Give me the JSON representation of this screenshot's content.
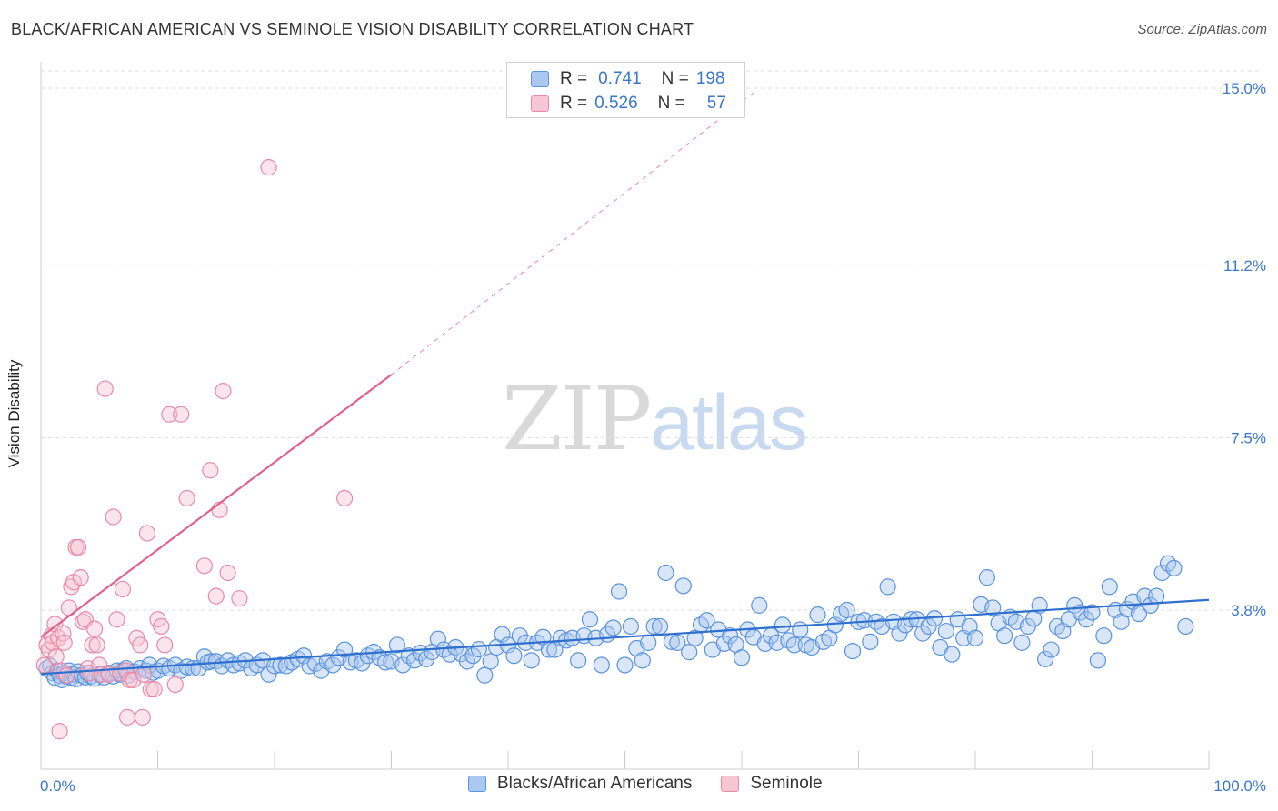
{
  "header": {
    "title": "BLACK/AFRICAN AMERICAN VS SEMINOLE VISION DISABILITY CORRELATION CHART",
    "source": "Source: ZipAtlas.com"
  },
  "watermark": {
    "zip": "ZIP",
    "atlas": "atlas"
  },
  "legend_top": {
    "rows": [
      {
        "r_label": "R =",
        "r_value": "0.741",
        "n_label": "N =",
        "n_value": "198"
      },
      {
        "r_label": "R =",
        "r_value": "0.526",
        "n_label": "N =",
        "n_value": "57"
      }
    ]
  },
  "legend_bottom": {
    "items": [
      {
        "label": "Blacks/African Americans"
      },
      {
        "label": "Seminole"
      }
    ]
  },
  "colors": {
    "blue_fill": "#aac8f0",
    "blue_stroke": "#5b93dd",
    "blue_line": "#2f6fce",
    "pink_fill": "#f7c6d4",
    "pink_stroke": "#e88aa8",
    "pink_line": "#e0638c",
    "axis_text": "#3a78c9",
    "grid": "#dddddd"
  },
  "chart_data": {
    "type": "scatter",
    "title": "BLACK/AFRICAN AMERICAN VS SEMINOLE VISION DISABILITY CORRELATION CHART",
    "ylabel": "Vision Disability",
    "xlabel": "",
    "x_tick_labels": [
      "0.0%",
      "100.0%"
    ],
    "y_tick_labels": [
      "3.8%",
      "7.5%",
      "11.2%",
      "15.0%"
    ],
    "y_ticks": [
      3.8,
      7.5,
      11.2,
      15.0
    ],
    "xlim": [
      0,
      100
    ],
    "ylim": [
      0,
      15.5
    ],
    "grid": true,
    "legend_placement": "top-center",
    "series": [
      {
        "name": "Blacks/African Americans",
        "r": 0.741,
        "n": 198,
        "trend": {
          "x": [
            0,
            100
          ],
          "y": [
            2.43,
            4.02
          ]
        },
        "points": [
          [
            0.5,
            2.55
          ],
          [
            0.8,
            2.6
          ],
          [
            1.0,
            2.45
          ],
          [
            1.2,
            2.35
          ],
          [
            1.4,
            2.5
          ],
          [
            1.6,
            2.4
          ],
          [
            1.8,
            2.3
          ],
          [
            2.0,
            2.45
          ],
          [
            2.2,
            2.38
          ],
          [
            2.4,
            2.5
          ],
          [
            2.6,
            2.35
          ],
          [
            2.8,
            2.42
          ],
          [
            3.0,
            2.32
          ],
          [
            3.2,
            2.48
          ],
          [
            3.5,
            2.4
          ],
          [
            3.8,
            2.36
          ],
          [
            4.0,
            2.45
          ],
          [
            4.3,
            2.38
          ],
          [
            4.6,
            2.33
          ],
          [
            5.0,
            2.42
          ],
          [
            5.4,
            2.36
          ],
          [
            5.8,
            2.45
          ],
          [
            6.2,
            2.38
          ],
          [
            6.5,
            2.5
          ],
          [
            6.8,
            2.42
          ],
          [
            7.0,
            2.5
          ],
          [
            7.3,
            2.55
          ],
          [
            7.5,
            2.4
          ],
          [
            8.0,
            2.48
          ],
          [
            8.5,
            2.55
          ],
          [
            9.0,
            2.5
          ],
          [
            9.3,
            2.62
          ],
          [
            9.6,
            2.46
          ],
          [
            10.0,
            2.5
          ],
          [
            10.5,
            2.6
          ],
          [
            11.0,
            2.55
          ],
          [
            11.5,
            2.62
          ],
          [
            12.0,
            2.5
          ],
          [
            12.5,
            2.58
          ],
          [
            13.0,
            2.55
          ],
          [
            13.5,
            2.55
          ],
          [
            14.0,
            2.8
          ],
          [
            14.3,
            2.68
          ],
          [
            14.6,
            2.7
          ],
          [
            15.0,
            2.7
          ],
          [
            15.5,
            2.6
          ],
          [
            16.0,
            2.72
          ],
          [
            16.5,
            2.62
          ],
          [
            17.0,
            2.66
          ],
          [
            17.5,
            2.72
          ],
          [
            18.0,
            2.55
          ],
          [
            18.5,
            2.62
          ],
          [
            19.0,
            2.72
          ],
          [
            19.5,
            2.42
          ],
          [
            20.0,
            2.6
          ],
          [
            20.5,
            2.62
          ],
          [
            21.0,
            2.6
          ],
          [
            21.5,
            2.68
          ],
          [
            22.0,
            2.75
          ],
          [
            22.5,
            2.82
          ],
          [
            23.0,
            2.6
          ],
          [
            23.5,
            2.65
          ],
          [
            24.0,
            2.5
          ],
          [
            24.5,
            2.7
          ],
          [
            25.0,
            2.62
          ],
          [
            25.5,
            2.78
          ],
          [
            26.0,
            2.95
          ],
          [
            26.5,
            2.68
          ],
          [
            27.0,
            2.72
          ],
          [
            27.5,
            2.66
          ],
          [
            28.0,
            2.82
          ],
          [
            28.5,
            2.9
          ],
          [
            29.0,
            2.78
          ],
          [
            29.5,
            2.68
          ],
          [
            30.0,
            2.7
          ],
          [
            30.5,
            3.05
          ],
          [
            31.0,
            2.62
          ],
          [
            31.5,
            2.82
          ],
          [
            32.0,
            2.72
          ],
          [
            32.5,
            2.88
          ],
          [
            33.0,
            2.75
          ],
          [
            33.5,
            2.9
          ],
          [
            34.0,
            3.18
          ],
          [
            34.5,
            2.95
          ],
          [
            35.0,
            2.85
          ],
          [
            35.5,
            3.0
          ],
          [
            36.0,
            2.86
          ],
          [
            36.5,
            2.7
          ],
          [
            37.0,
            2.82
          ],
          [
            37.5,
            2.96
          ],
          [
            38.0,
            2.4
          ],
          [
            38.5,
            2.7
          ],
          [
            39.0,
            3.0
          ],
          [
            39.5,
            3.28
          ],
          [
            40.0,
            3.05
          ],
          [
            40.5,
            2.82
          ],
          [
            41.0,
            3.25
          ],
          [
            41.5,
            3.1
          ],
          [
            42.0,
            2.72
          ],
          [
            42.5,
            3.1
          ],
          [
            43.0,
            3.22
          ],
          [
            43.5,
            2.95
          ],
          [
            44.0,
            2.95
          ],
          [
            44.5,
            3.2
          ],
          [
            45.0,
            3.15
          ],
          [
            45.5,
            3.2
          ],
          [
            46.0,
            2.72
          ],
          [
            46.5,
            3.25
          ],
          [
            47.0,
            3.6
          ],
          [
            47.5,
            3.2
          ],
          [
            48.0,
            2.62
          ],
          [
            48.5,
            3.28
          ],
          [
            49.0,
            3.42
          ],
          [
            49.5,
            4.2
          ],
          [
            50.0,
            2.62
          ],
          [
            50.5,
            3.45
          ],
          [
            51.0,
            2.98
          ],
          [
            51.5,
            2.72
          ],
          [
            52.0,
            3.1
          ],
          [
            52.5,
            3.45
          ],
          [
            53.0,
            3.45
          ],
          [
            53.5,
            4.6
          ],
          [
            54.0,
            3.12
          ],
          [
            54.5,
            3.1
          ],
          [
            55.0,
            4.32
          ],
          [
            55.5,
            2.9
          ],
          [
            56.0,
            3.2
          ],
          [
            56.5,
            3.48
          ],
          [
            57.0,
            3.58
          ],
          [
            57.5,
            2.95
          ],
          [
            58.0,
            3.38
          ],
          [
            58.5,
            3.08
          ],
          [
            59.0,
            3.25
          ],
          [
            59.5,
            3.06
          ],
          [
            60.0,
            2.78
          ],
          [
            60.5,
            3.38
          ],
          [
            61.0,
            3.22
          ],
          [
            61.5,
            3.9
          ],
          [
            62.0,
            3.08
          ],
          [
            62.5,
            3.25
          ],
          [
            63.0,
            3.1
          ],
          [
            63.5,
            3.48
          ],
          [
            64.0,
            3.15
          ],
          [
            64.5,
            3.05
          ],
          [
            65.0,
            3.38
          ],
          [
            65.5,
            3.05
          ],
          [
            66.0,
            3.0
          ],
          [
            66.5,
            3.7
          ],
          [
            67.0,
            3.12
          ],
          [
            67.5,
            3.2
          ],
          [
            68.0,
            3.48
          ],
          [
            68.5,
            3.72
          ],
          [
            69.0,
            3.8
          ],
          [
            69.5,
            2.92
          ],
          [
            70.0,
            3.55
          ],
          [
            70.5,
            3.58
          ],
          [
            71.0,
            3.12
          ],
          [
            71.5,
            3.55
          ],
          [
            72.0,
            3.45
          ],
          [
            72.5,
            4.3
          ],
          [
            73.0,
            3.55
          ],
          [
            73.5,
            3.3
          ],
          [
            74.0,
            3.48
          ],
          [
            74.5,
            3.6
          ],
          [
            75.0,
            3.6
          ],
          [
            75.5,
            3.3
          ],
          [
            76.0,
            3.45
          ],
          [
            76.5,
            3.62
          ],
          [
            77.0,
            3.0
          ],
          [
            77.5,
            3.35
          ],
          [
            78.0,
            2.85
          ],
          [
            78.5,
            3.6
          ],
          [
            79.0,
            3.2
          ],
          [
            79.5,
            3.45
          ],
          [
            80.0,
            3.2
          ],
          [
            80.5,
            3.92
          ],
          [
            81.0,
            4.5
          ],
          [
            81.5,
            3.85
          ],
          [
            82.0,
            3.52
          ],
          [
            82.5,
            3.25
          ],
          [
            83.0,
            3.65
          ],
          [
            83.5,
            3.55
          ],
          [
            84.0,
            3.1
          ],
          [
            84.5,
            3.45
          ],
          [
            85.0,
            3.62
          ],
          [
            85.5,
            3.9
          ],
          [
            86.0,
            2.75
          ],
          [
            86.5,
            2.95
          ],
          [
            87.0,
            3.45
          ],
          [
            87.5,
            3.35
          ],
          [
            88.0,
            3.6
          ],
          [
            88.5,
            3.9
          ],
          [
            89.0,
            3.75
          ],
          [
            89.5,
            3.6
          ],
          [
            90.0,
            3.75
          ],
          [
            90.5,
            2.72
          ],
          [
            91.0,
            3.25
          ],
          [
            91.5,
            4.3
          ],
          [
            92.0,
            3.8
          ],
          [
            92.5,
            3.55
          ],
          [
            93.0,
            3.82
          ],
          [
            93.5,
            3.98
          ],
          [
            94.0,
            3.72
          ],
          [
            94.5,
            4.1
          ],
          [
            95.0,
            3.9
          ],
          [
            95.5,
            4.1
          ],
          [
            96.0,
            4.6
          ],
          [
            96.5,
            4.8
          ],
          [
            97.0,
            4.7
          ],
          [
            98.0,
            3.45
          ]
        ]
      },
      {
        "name": "Seminole",
        "r": 0.526,
        "n": 57,
        "trend": {
          "x": [
            0,
            30
          ],
          "y": [
            3.22,
            8.85
          ]
        },
        "trend_extension": {
          "x": [
            30,
            61
          ],
          "y": [
            8.85,
            14.9
          ]
        },
        "points": [
          [
            0.3,
            2.62
          ],
          [
            0.5,
            3.05
          ],
          [
            0.7,
            2.95
          ],
          [
            0.9,
            3.25
          ],
          [
            1.0,
            3.1
          ],
          [
            1.2,
            3.5
          ],
          [
            1.3,
            2.8
          ],
          [
            1.5,
            3.2
          ],
          [
            1.7,
            2.5
          ],
          [
            1.9,
            3.3
          ],
          [
            2.0,
            3.1
          ],
          [
            2.2,
            2.4
          ],
          [
            2.4,
            3.85
          ],
          [
            2.6,
            4.3
          ],
          [
            2.8,
            4.4
          ],
          [
            3.0,
            5.15
          ],
          [
            3.2,
            5.15
          ],
          [
            3.4,
            4.5
          ],
          [
            3.6,
            3.55
          ],
          [
            3.8,
            3.6
          ],
          [
            4.0,
            2.55
          ],
          [
            4.2,
            2.45
          ],
          [
            4.4,
            3.05
          ],
          [
            4.6,
            3.4
          ],
          [
            4.8,
            3.05
          ],
          [
            5.0,
            2.62
          ],
          [
            5.2,
            2.42
          ],
          [
            5.5,
            8.55
          ],
          [
            5.8,
            2.42
          ],
          [
            6.2,
            5.8
          ],
          [
            6.5,
            3.6
          ],
          [
            6.8,
            2.45
          ],
          [
            7.0,
            4.25
          ],
          [
            7.3,
            2.5
          ],
          [
            7.6,
            2.3
          ],
          [
            7.9,
            2.3
          ],
          [
            8.2,
            3.2
          ],
          [
            8.5,
            3.05
          ],
          [
            8.8,
            2.42
          ],
          [
            9.1,
            5.45
          ],
          [
            9.4,
            2.1
          ],
          [
            9.7,
            2.1
          ],
          [
            10.0,
            3.6
          ],
          [
            10.3,
            3.45
          ],
          [
            10.6,
            3.05
          ],
          [
            11.0,
            8.0
          ],
          [
            11.5,
            2.2
          ],
          [
            12.0,
            8.0
          ],
          [
            12.5,
            6.2
          ],
          [
            14.0,
            4.75
          ],
          [
            14.5,
            6.8
          ],
          [
            15.0,
            4.1
          ],
          [
            15.3,
            5.95
          ],
          [
            15.6,
            8.5
          ],
          [
            16.0,
            4.6
          ],
          [
            17.0,
            4.05
          ],
          [
            19.5,
            13.3
          ],
          [
            26.0,
            6.2
          ],
          [
            1.6,
            1.2
          ],
          [
            7.4,
            1.5
          ],
          [
            8.7,
            1.5
          ]
        ]
      }
    ]
  }
}
